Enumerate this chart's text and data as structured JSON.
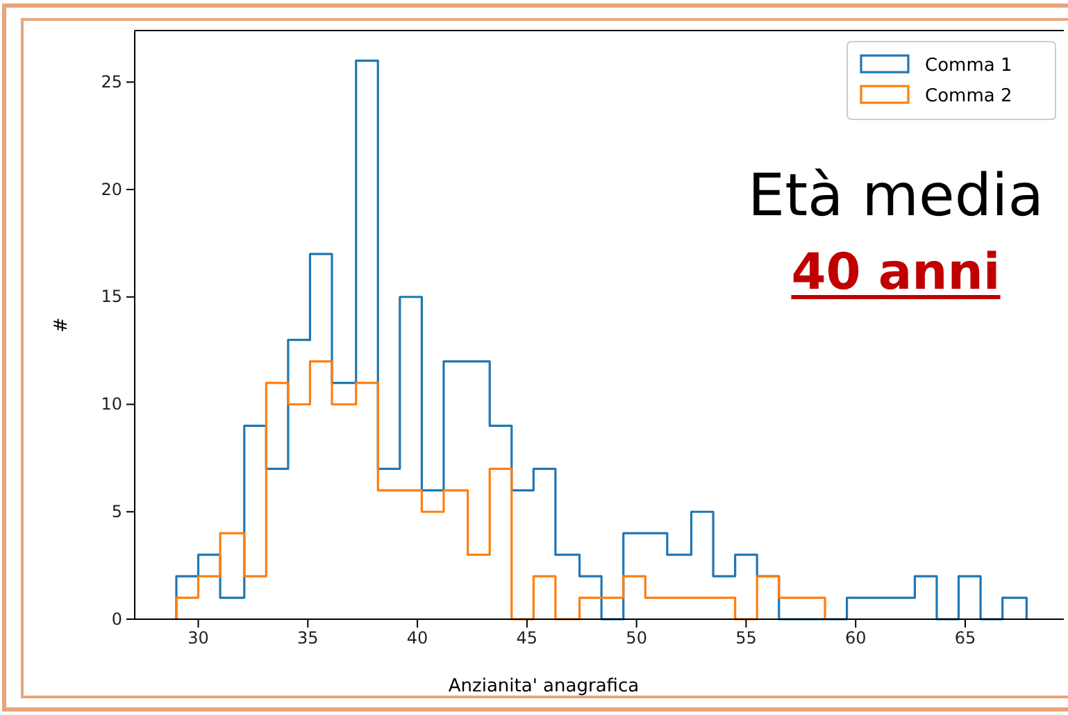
{
  "chart_data": {
    "type": "histogram",
    "xlabel": "Anzianita' anagrafica",
    "ylabel": "#",
    "annotations": [
      "Età media",
      "40 anni"
    ],
    "bins": [
      29.0,
      30.0,
      31.0,
      32.1,
      33.1,
      34.1,
      35.1,
      36.1,
      37.2,
      38.2,
      39.2,
      40.2,
      41.2,
      42.3,
      43.3,
      44.3,
      45.3,
      46.3,
      47.4,
      48.4,
      49.4,
      50.4,
      51.4,
      52.5,
      53.5,
      54.5,
      55.5,
      56.5,
      57.6,
      58.6,
      59.6,
      60.6,
      61.6,
      62.7,
      63.7,
      64.7,
      65.7,
      66.7,
      67.8
    ],
    "series": [
      {
        "name": "Comma 1",
        "color": "#1f77b4",
        "values": [
          2,
          3,
          1,
          9,
          7,
          13,
          17,
          11,
          26,
          7,
          15,
          6,
          12,
          12,
          9,
          6,
          7,
          3,
          2,
          0,
          4,
          4,
          3,
          5,
          2,
          3,
          2,
          0,
          0,
          0,
          1,
          1,
          1,
          2,
          0,
          2,
          0,
          1
        ]
      },
      {
        "name": "Comma 2",
        "color": "#ff7f0e",
        "bins": [
          29.0,
          30.0,
          31.0,
          32.1,
          33.1,
          34.1,
          35.1,
          36.1,
          37.2,
          38.2,
          39.2,
          40.2,
          41.2,
          42.3,
          43.3,
          44.3,
          45.3,
          46.3,
          47.4,
          48.4,
          49.4,
          50.4,
          51.4,
          52.5,
          53.5,
          54.5,
          55.5,
          56.5,
          57.6,
          58.6
        ],
        "values": [
          1,
          2,
          4,
          2,
          11,
          10,
          12,
          10,
          11,
          6,
          6,
          5,
          6,
          3,
          7,
          0,
          2,
          0,
          1,
          1,
          2,
          1,
          1,
          1,
          1,
          0,
          2,
          1,
          1
        ]
      }
    ],
    "xlim": [
      27.1,
      69.5
    ],
    "ylim": [
      0,
      27.4
    ],
    "xticks": [
      30,
      35,
      40,
      45,
      50,
      55,
      60,
      65
    ],
    "yticks": [
      0,
      5,
      10,
      15,
      20,
      25
    ],
    "legend": "top right",
    "grid": false
  }
}
